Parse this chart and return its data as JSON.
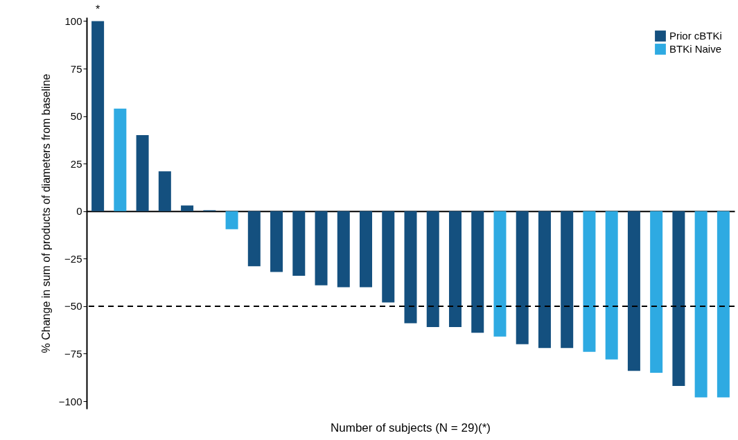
{
  "chart_data": {
    "type": "bar",
    "xlabel": "Number of subjects (N = 29)(*)",
    "ylabel": "% Change in sum of products of diameters from baseline",
    "categories": [
      null,
      null,
      null,
      null,
      null,
      null,
      null,
      null,
      null,
      null,
      null,
      null,
      null,
      null,
      null,
      null,
      null,
      null,
      null,
      null,
      null,
      null,
      null,
      null,
      null,
      null,
      null,
      null,
      null
    ],
    "series": [
      {
        "name": "Prior cBTKi",
        "color": "#14507f",
        "values": [
          100,
          null,
          40,
          21,
          3,
          0.5,
          null,
          -29,
          -32,
          -34,
          -39,
          -40,
          -40,
          -48,
          -59,
          -61,
          -61,
          -64,
          null,
          -70,
          -72,
          -72,
          null,
          null,
          -84,
          null,
          -92,
          null,
          null
        ]
      },
      {
        "name": "BTKi Naive",
        "color": "#2eaae2",
        "values": [
          null,
          54,
          null,
          null,
          null,
          null,
          -9.5,
          null,
          null,
          null,
          null,
          null,
          null,
          null,
          null,
          null,
          null,
          null,
          -66,
          null,
          null,
          null,
          -74,
          -78,
          null,
          -85,
          null,
          -98,
          -98
        ]
      }
    ],
    "ylim": [
      -104,
      102
    ],
    "yticks": [
      -100,
      -75,
      -50,
      -25,
      0,
      25,
      50,
      75,
      100
    ],
    "grid": false,
    "legend": "top right",
    "ref_lines": [
      {
        "axis": "y",
        "value": -50,
        "line_style": "dashed",
        "color": "#000000"
      }
    ],
    "annotations": [
      {
        "text": "*",
        "y": 100
      }
    ]
  }
}
